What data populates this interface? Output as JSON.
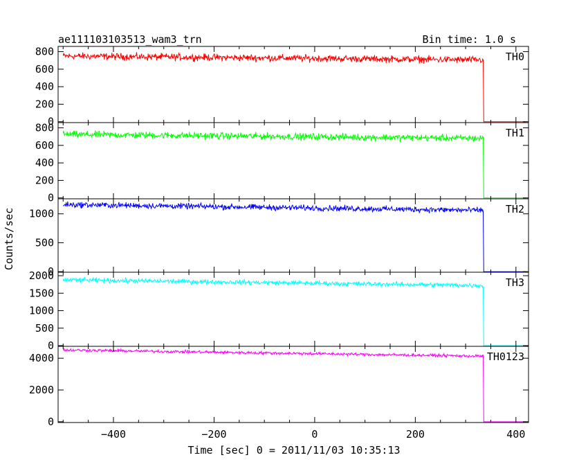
{
  "title_left": "ae111103103513_wam3_trn",
  "title_right": "Bin time: 1.0 s",
  "ylabel": "Counts/sec",
  "xlabel": "Time [sec] 0 = 2011/11/03 10:35:13",
  "chart_data": {
    "type": "line",
    "xlim": [
      -510,
      425
    ],
    "x_ticks": [
      -400,
      -200,
      0,
      200,
      400
    ],
    "x_tick_labels": [
      "−400",
      "−200",
      "0",
      "200",
      "400"
    ],
    "drop_time": 335,
    "x_end": 420,
    "x_start": -500,
    "panels": [
      {
        "name": "TH0",
        "color": "#ff0000",
        "ylim": [
          -10,
          860
        ],
        "ticks": [
          0,
          200,
          400,
          600,
          800
        ],
        "tick_labels": [
          "0",
          "200",
          "400",
          "600",
          "800"
        ],
        "start": 750,
        "end_before_drop": 705,
        "noise": 30,
        "after_drop": 0
      },
      {
        "name": "TH1",
        "color": "#00ff00",
        "ylim": [
          -10,
          860
        ],
        "ticks": [
          0,
          200,
          400,
          600,
          800
        ],
        "tick_labels": [
          "0",
          "200",
          "400",
          "600",
          "800"
        ],
        "start": 725,
        "end_before_drop": 680,
        "noise": 30,
        "after_drop": 0
      },
      {
        "name": "TH2",
        "color": "#0000ff",
        "ylim": [
          -10,
          1260
        ],
        "ticks": [
          0,
          500,
          1000
        ],
        "tick_labels": [
          "0",
          "500",
          "1000"
        ],
        "start": 1160,
        "end_before_drop": 1060,
        "noise": 38,
        "after_drop": 0
      },
      {
        "name": "TH3",
        "color": "#00ffff",
        "ylim": [
          -20,
          2100
        ],
        "ticks": [
          0,
          500,
          1000,
          1500,
          2000
        ],
        "tick_labels": [
          "0",
          "500",
          "1000",
          "1500",
          "2000"
        ],
        "start": 1880,
        "end_before_drop": 1720,
        "noise": 50,
        "after_drop": 0
      },
      {
        "name": "TH0123",
        "color": "#ff00ff",
        "ylim": [
          -50,
          4750
        ],
        "ticks": [
          0,
          2000,
          4000
        ],
        "tick_labels": [
          "0",
          "2000",
          "4000"
        ],
        "start": 4520,
        "end_before_drop": 4130,
        "noise": 70,
        "after_drop": 0
      }
    ]
  }
}
